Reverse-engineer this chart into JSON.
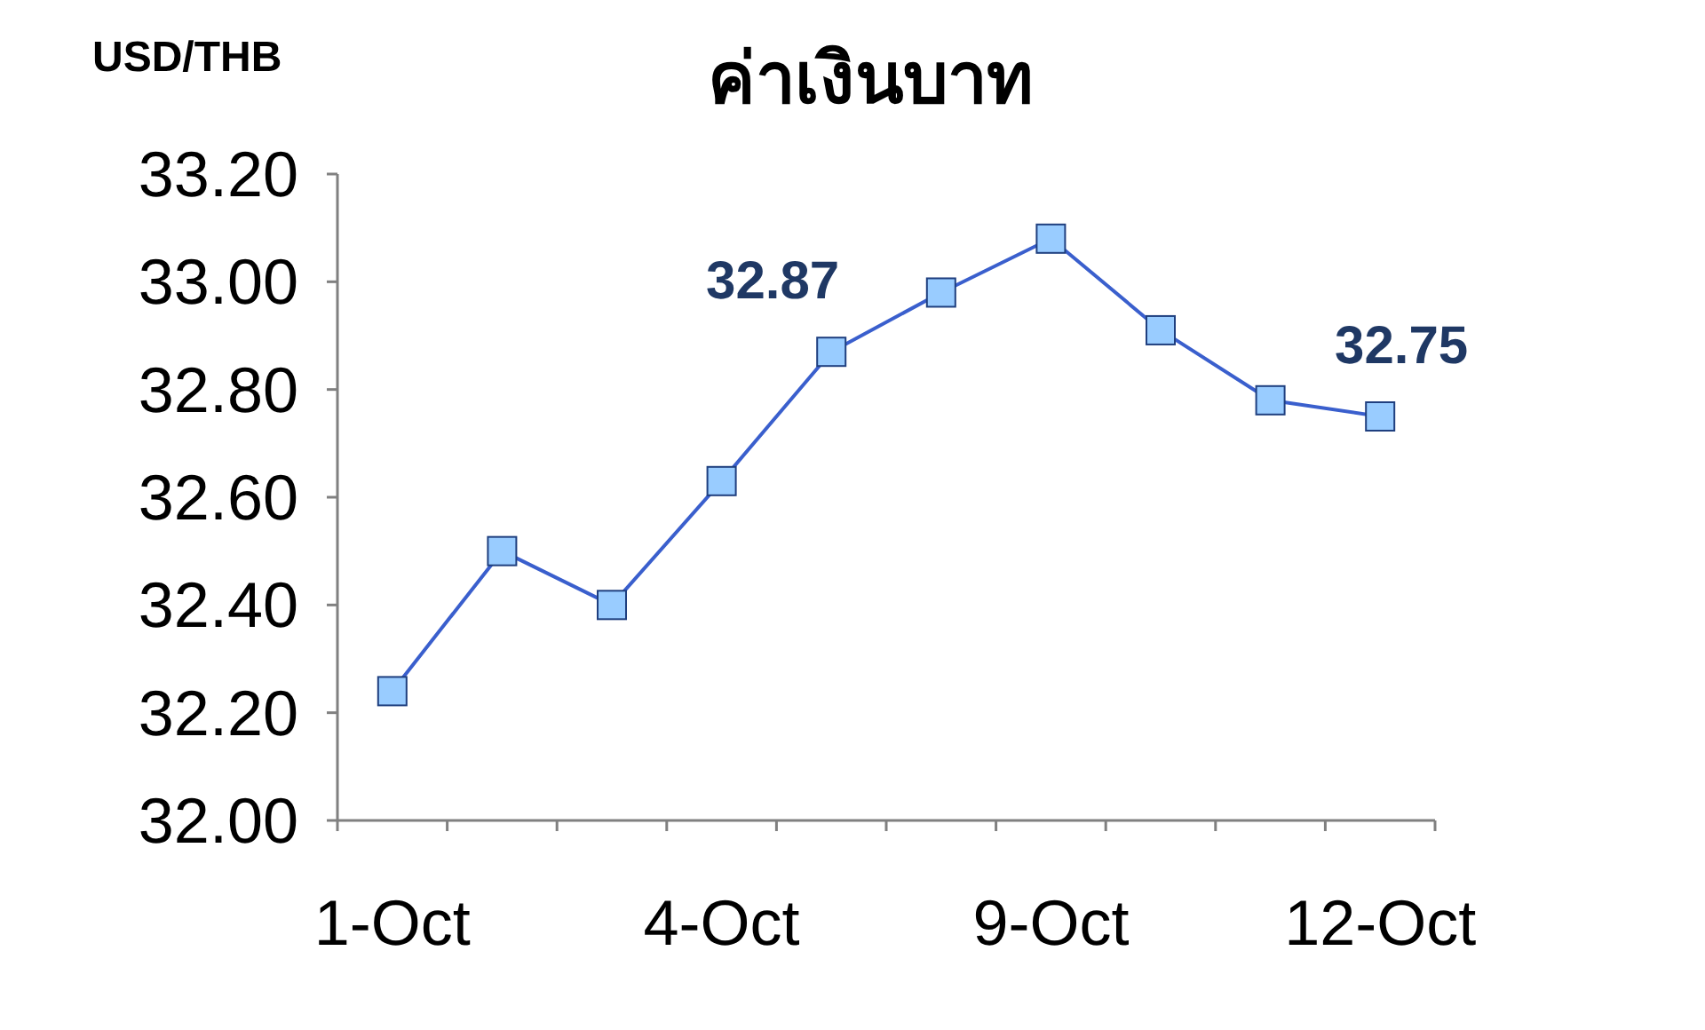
{
  "chart_data": {
    "type": "line",
    "title": "ค่าเงินบาท",
    "ylabel": "USD/THB",
    "categories": [
      "1-Oct",
      null,
      null,
      "4-Oct",
      null,
      null,
      "9-Oct",
      null,
      null,
      "12-Oct"
    ],
    "series": [
      {
        "color": "#3a5fcd",
        "colors": [
          "#99ccff",
          "#99ccff",
          "#99ccff",
          "#99ccff",
          "#99ccff",
          "#99ccff",
          "#99ccff",
          "#99ccff",
          "#99ccff",
          "#99ccff"
        ],
        "values": [
          32.24,
          32.5,
          32.4,
          32.63,
          32.87,
          32.98,
          33.08,
          32.91,
          32.78,
          32.75
        ],
        "value_labels": [
          null,
          null,
          null,
          null,
          "32.87",
          null,
          null,
          null,
          null,
          "32.75"
        ]
      }
    ],
    "ylim": [
      32.0,
      33.2
    ],
    "yticks": [
      {
        "value": 32.0,
        "label": "32.00"
      },
      {
        "value": 32.2,
        "label": "32.20"
      },
      {
        "value": 32.4,
        "label": "32.40"
      },
      {
        "value": 32.6,
        "label": "32.60"
      },
      {
        "value": 32.8,
        "label": "32.80"
      },
      {
        "value": 33.0,
        "label": "33.00"
      },
      {
        "value": 33.2,
        "label": "33.20"
      }
    ],
    "marker": "square",
    "grid": false
  }
}
